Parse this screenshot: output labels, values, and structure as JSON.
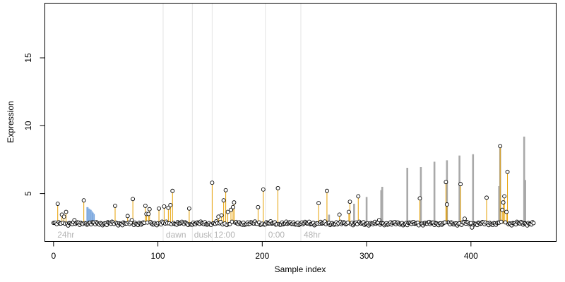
{
  "chart_data": {
    "type": "scatter",
    "title": "",
    "xlabel": "Sample index",
    "ylabel": "Expression",
    "xlim": [
      -8,
      482
    ],
    "ylim": [
      1.5,
      19
    ],
    "x_ticks": [
      0,
      100,
      200,
      300,
      400
    ],
    "y_ticks": [
      5,
      10,
      15
    ],
    "grid": false,
    "region_boundaries": [
      105,
      133,
      152,
      203,
      237
    ],
    "region_labels": [
      {
        "text": "24hr",
        "x": 3
      },
      {
        "text": "dawn",
        "x": 107
      },
      {
        "text": "dusk",
        "x": 134
      },
      {
        "text": "12:00",
        "x": 153
      },
      {
        "text": "0:00",
        "x": 205
      },
      {
        "text": "48hr",
        "x": 239
      }
    ],
    "baseline": 2.8,
    "n_points": 461,
    "colors": {
      "orange_segments": "#E69F00",
      "blue_segments": "#6FA0DC",
      "gray_bars": "#A9A9A9",
      "region_lines": "#E3E3E3",
      "region_text": "#B4B4B4",
      "points_fill": "#FFFFFF",
      "points_stroke": "#000000"
    },
    "series": [
      {
        "name": "",
        "points": [
          [
            4,
            4.25
          ],
          [
            8,
            3.45
          ],
          [
            10,
            3.3
          ],
          [
            12,
            3.65
          ],
          [
            20,
            3.05
          ],
          [
            29,
            4.5
          ],
          [
            59,
            4.1
          ],
          [
            71,
            3.35
          ],
          [
            75,
            3.05
          ],
          [
            76,
            4.6
          ],
          [
            88,
            4.1
          ],
          [
            89,
            3.5
          ],
          [
            91,
            3.5
          ],
          [
            92,
            3.85
          ],
          [
            101,
            3.9
          ],
          [
            106,
            4.05
          ],
          [
            110,
            3.95
          ],
          [
            112,
            4.15
          ],
          [
            114,
            5.2
          ],
          [
            130,
            3.9
          ],
          [
            152,
            5.8
          ],
          [
            158,
            3.3
          ],
          [
            161,
            3.4
          ],
          [
            163,
            4.5
          ],
          [
            165,
            5.25
          ],
          [
            167,
            3.65
          ],
          [
            170,
            3.8
          ],
          [
            172,
            4.0
          ],
          [
            173,
            4.35
          ],
          [
            196,
            4.0
          ],
          [
            201,
            5.3
          ],
          [
            215,
            5.4
          ],
          [
            254,
            4.3
          ],
          [
            262,
            5.2
          ],
          [
            274,
            3.45
          ],
          [
            283,
            3.65
          ],
          [
            284,
            4.4
          ],
          [
            292,
            4.8
          ],
          [
            312,
            3.05
          ],
          [
            351,
            4.65
          ],
          [
            376,
            5.85
          ],
          [
            377,
            4.2
          ],
          [
            390,
            5.7
          ],
          [
            394,
            3.15
          ],
          [
            415,
            4.7
          ],
          [
            428,
            8.5
          ],
          [
            430,
            3.8
          ],
          [
            431,
            4.35
          ],
          [
            432,
            4.8
          ],
          [
            434,
            3.65
          ],
          [
            435,
            6.6
          ],
          [
            401,
            2.5
          ]
        ]
      }
    ],
    "vertical_bars": [
      {
        "x": 32,
        "top": 4.0,
        "color": "blue"
      },
      {
        "x": 33,
        "top": 4.0,
        "color": "blue"
      },
      {
        "x": 34,
        "top": 3.9,
        "color": "blue"
      },
      {
        "x": 35,
        "top": 3.85,
        "color": "blue"
      },
      {
        "x": 36,
        "top": 3.8,
        "color": "blue"
      },
      {
        "x": 37,
        "top": 3.7,
        "color": "blue"
      },
      {
        "x": 38,
        "top": 3.6,
        "color": "blue"
      },
      {
        "x": 39,
        "top": 3.5,
        "color": "blue"
      },
      {
        "x": 264,
        "top": 3.45,
        "color": "gray"
      },
      {
        "x": 288,
        "top": 4.25,
        "color": "gray"
      },
      {
        "x": 300,
        "top": 4.75,
        "color": "gray"
      },
      {
        "x": 314,
        "top": 5.25,
        "color": "gray"
      },
      {
        "x": 315,
        "top": 5.5,
        "color": "gray"
      },
      {
        "x": 339,
        "top": 6.9,
        "color": "gray"
      },
      {
        "x": 352,
        "top": 6.95,
        "color": "gray"
      },
      {
        "x": 365,
        "top": 7.35,
        "color": "gray"
      },
      {
        "x": 377,
        "top": 7.45,
        "color": "gray"
      },
      {
        "x": 389,
        "top": 7.8,
        "color": "gray"
      },
      {
        "x": 402,
        "top": 7.9,
        "color": "gray"
      },
      {
        "x": 427,
        "top": 5.55,
        "color": "gray"
      },
      {
        "x": 428,
        "top": 8.5,
        "color": "gray"
      },
      {
        "x": 451,
        "top": 9.2,
        "color": "gray"
      },
      {
        "x": 452,
        "top": 6.0,
        "color": "gray"
      }
    ]
  }
}
